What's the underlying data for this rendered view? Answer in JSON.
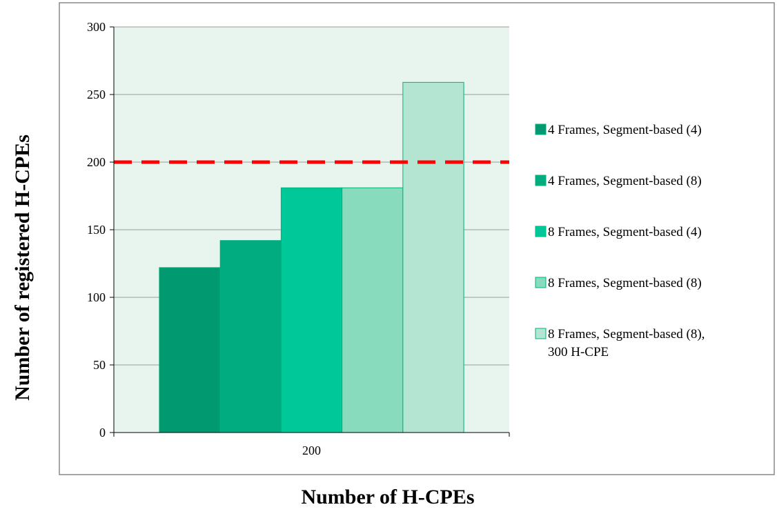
{
  "chart_data": {
    "type": "bar",
    "title": "",
    "xlabel": "Number of H-CPEs",
    "ylabel": "Number of registered H-CPEs",
    "categories": [
      "200"
    ],
    "ylim": [
      0,
      300
    ],
    "yticks": [
      0,
      50,
      100,
      150,
      200,
      250,
      300
    ],
    "grid": true,
    "legend_position": "right",
    "series": [
      {
        "name": "4 Frames, Segment-based (4)",
        "values": [
          122
        ],
        "color": "#009970"
      },
      {
        "name": "4 Frames, Segment-based (8)",
        "values": [
          142
        ],
        "color": "#00ac80"
      },
      {
        "name": "8 Frames, Segment-based (4)",
        "values": [
          181
        ],
        "color": "#00c898"
      },
      {
        "name": "8 Frames, Segment-based (8)",
        "values": [
          181
        ],
        "color": "#88dbbc"
      },
      {
        "name_lines": [
          "8 Frames, Segment-based (8),",
          "300 H-CPE"
        ],
        "name": "8 Frames, Segment-based (8), 300 H-CPE",
        "values": [
          259
        ],
        "color": "#b4e5d3"
      }
    ],
    "reference_line": {
      "value": 200,
      "color": "#ff0000",
      "style": "dashed"
    },
    "colors": {
      "plot_background": "#e8f5ee",
      "bar_outline": "#00b07c",
      "frame": "#888888",
      "grid": "#9a9a9a"
    }
  }
}
